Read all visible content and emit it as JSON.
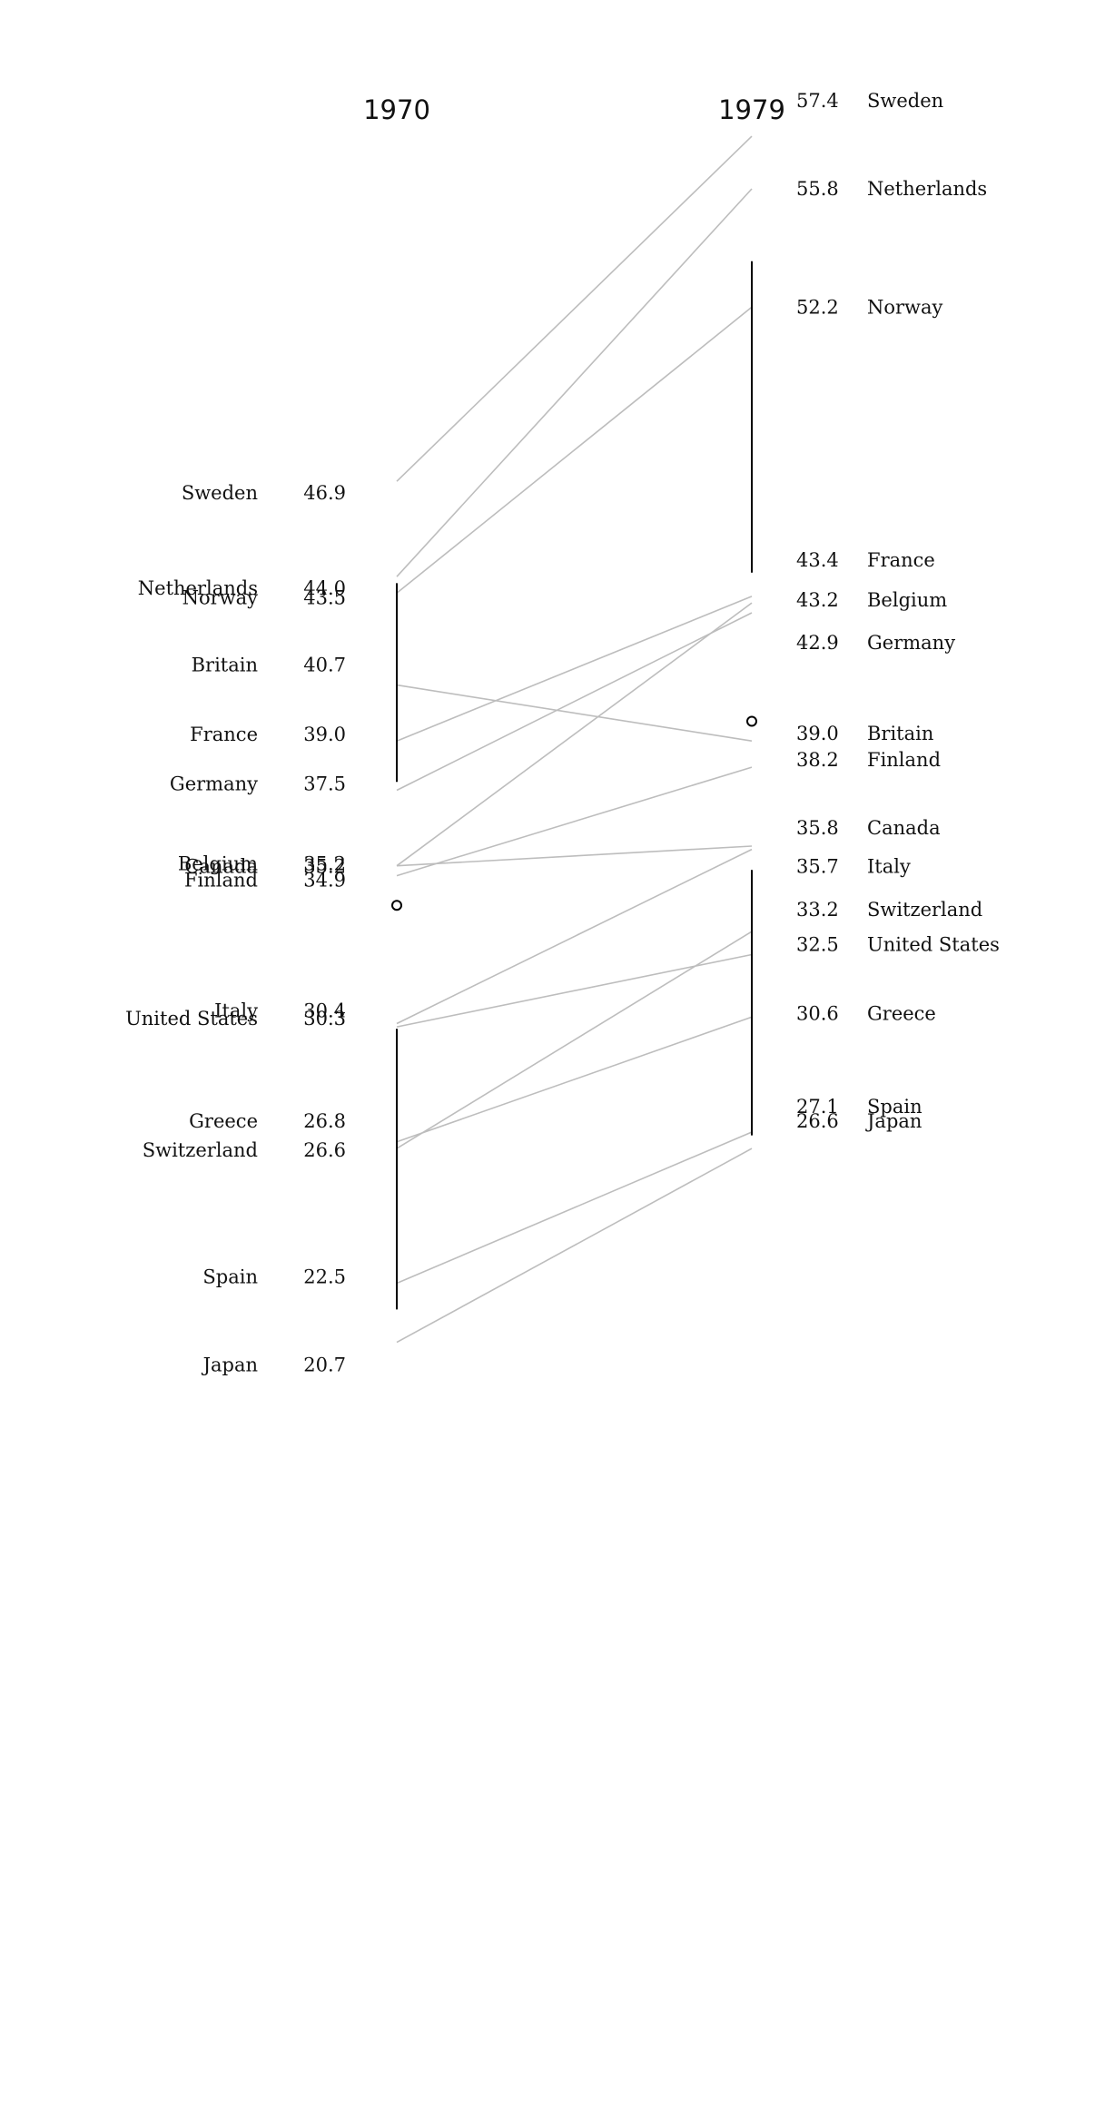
{
  "chart_data": {
    "type": "slope",
    "x": [
      "1970",
      "1979"
    ],
    "series": [
      {
        "name": "Sweden",
        "values": [
          46.9,
          57.4
        ]
      },
      {
        "name": "Netherlands",
        "values": [
          44.0,
          55.8
        ]
      },
      {
        "name": "Norway",
        "values": [
          43.5,
          52.2
        ]
      },
      {
        "name": "Britain",
        "values": [
          40.7,
          39.0
        ]
      },
      {
        "name": "France",
        "values": [
          39.0,
          43.4
        ]
      },
      {
        "name": "Germany",
        "values": [
          37.5,
          42.9
        ]
      },
      {
        "name": "Belgium",
        "values": [
          35.2,
          43.2
        ]
      },
      {
        "name": "Canada",
        "values": [
          35.2,
          35.8
        ]
      },
      {
        "name": "Finland",
        "values": [
          34.9,
          38.2
        ]
      },
      {
        "name": "Italy",
        "values": [
          30.4,
          35.7
        ]
      },
      {
        "name": "United States",
        "values": [
          30.3,
          32.5
        ]
      },
      {
        "name": "Greece",
        "values": [
          26.8,
          30.6
        ]
      },
      {
        "name": "Switzerland",
        "values": [
          26.6,
          33.2
        ]
      },
      {
        "name": "Spain",
        "values": [
          22.5,
          27.1
        ]
      },
      {
        "name": "Japan",
        "values": [
          20.7,
          26.6
        ]
      }
    ],
    "value_labels": {
      "1970": [
        "46.9",
        "44.0",
        "43.5",
        "40.7",
        "39.0",
        "37.5",
        "35.2",
        "35.2",
        "34.9",
        "30.4",
        "30.3",
        "26.8",
        "26.6",
        "22.5",
        "20.7"
      ],
      "1979": [
        "57.4",
        "55.8",
        "52.2",
        "39.0",
        "43.4",
        "42.9",
        "43.2",
        "35.8",
        "38.2",
        "35.7",
        "32.5",
        "30.6",
        "33.2",
        "27.1",
        "26.6"
      ]
    },
    "label_order": {
      "1970": [
        "Sweden",
        "Netherlands",
        "Norway",
        "Britain",
        "France",
        "Germany",
        "Belgium",
        "Canada",
        "Finland",
        "Italy",
        "United States",
        "Greece",
        "Switzerland",
        "Spain",
        "Japan"
      ],
      "1979": [
        "Sweden",
        "Netherlands",
        "Norway",
        "France",
        "Belgium",
        "Germany",
        "Britain",
        "Finland",
        "Canada",
        "Italy",
        "Switzerland",
        "United States",
        "Greece",
        "Spain",
        "Japan"
      ]
    },
    "summary_marks": {
      "1970": {
        "range": [
          21.7,
          43.8
        ],
        "median_marker": 34.0
      },
      "1979": {
        "range": [
          27.0,
          53.6
        ],
        "median_marker": 39.6
      }
    },
    "colors": {
      "slope_line": "#bdbdbd",
      "text": "#111111",
      "range_bar": "#000000"
    }
  }
}
